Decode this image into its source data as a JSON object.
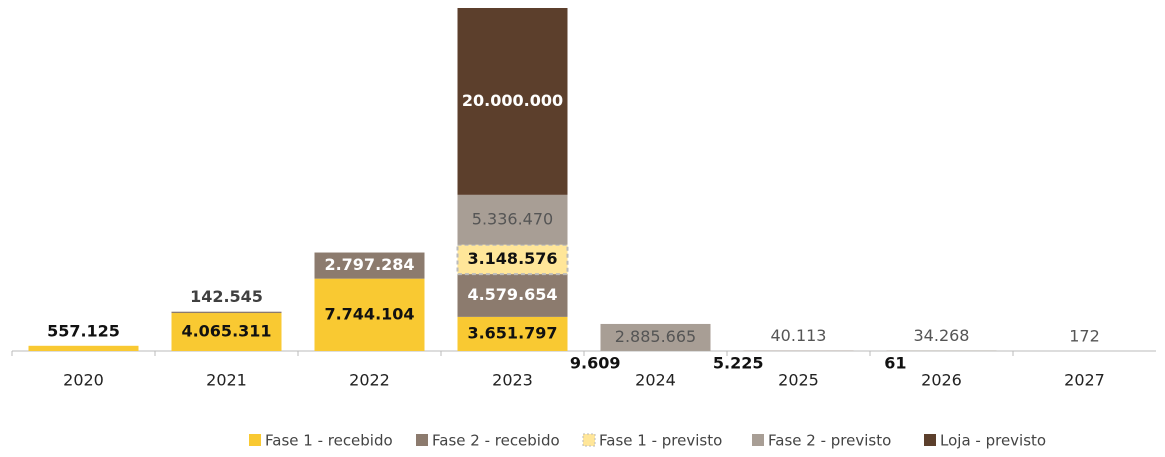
{
  "chart_data": {
    "type": "stacked_bar",
    "categories": [
      "2020",
      "2021",
      "2022",
      "2023",
      "2024",
      "2025",
      "2026",
      "2027"
    ],
    "series": [
      {
        "name": "Fase 1 - recebido",
        "color": "#F9C932",
        "values": [
          557125,
          4065311,
          7744104,
          3651797,
          null,
          null,
          null,
          null
        ],
        "value_labels": [
          "557.125",
          "4.065.311",
          "7.744.104",
          "3.651.797",
          null,
          null,
          null,
          null
        ]
      },
      {
        "name": "Fase 2 - recebido",
        "color": "#8C7B6E",
        "values": [
          null,
          142545,
          2797284,
          4579654,
          9609,
          5225,
          61,
          null
        ],
        "value_labels": [
          null,
          "142.545",
          "2.797.284",
          "4.579.654",
          "9.609",
          "5.225",
          "61",
          null
        ]
      },
      {
        "name": "Fase 1 - previsto",
        "color": "#FFE699",
        "values": [
          null,
          null,
          null,
          3148576,
          null,
          null,
          null,
          null
        ],
        "value_labels": [
          null,
          null,
          null,
          "3.148.576",
          null,
          null,
          null,
          null
        ]
      },
      {
        "name": "Fase 2 - previsto",
        "color": "#A89E95",
        "values": [
          null,
          null,
          null,
          5336470,
          2885665,
          40113,
          34268,
          172
        ],
        "value_labels": [
          null,
          null,
          null,
          "5.336.470",
          "2.885.665",
          "40.113",
          "34.268",
          "172"
        ]
      },
      {
        "name": "Loja - previsto",
        "color": "#5C3F2C",
        "values": [
          null,
          null,
          null,
          20000000,
          null,
          null,
          null,
          null
        ],
        "value_labels": [
          null,
          null,
          null,
          "20.000.000",
          null,
          null,
          null,
          null
        ]
      }
    ],
    "legend": "bottom"
  }
}
